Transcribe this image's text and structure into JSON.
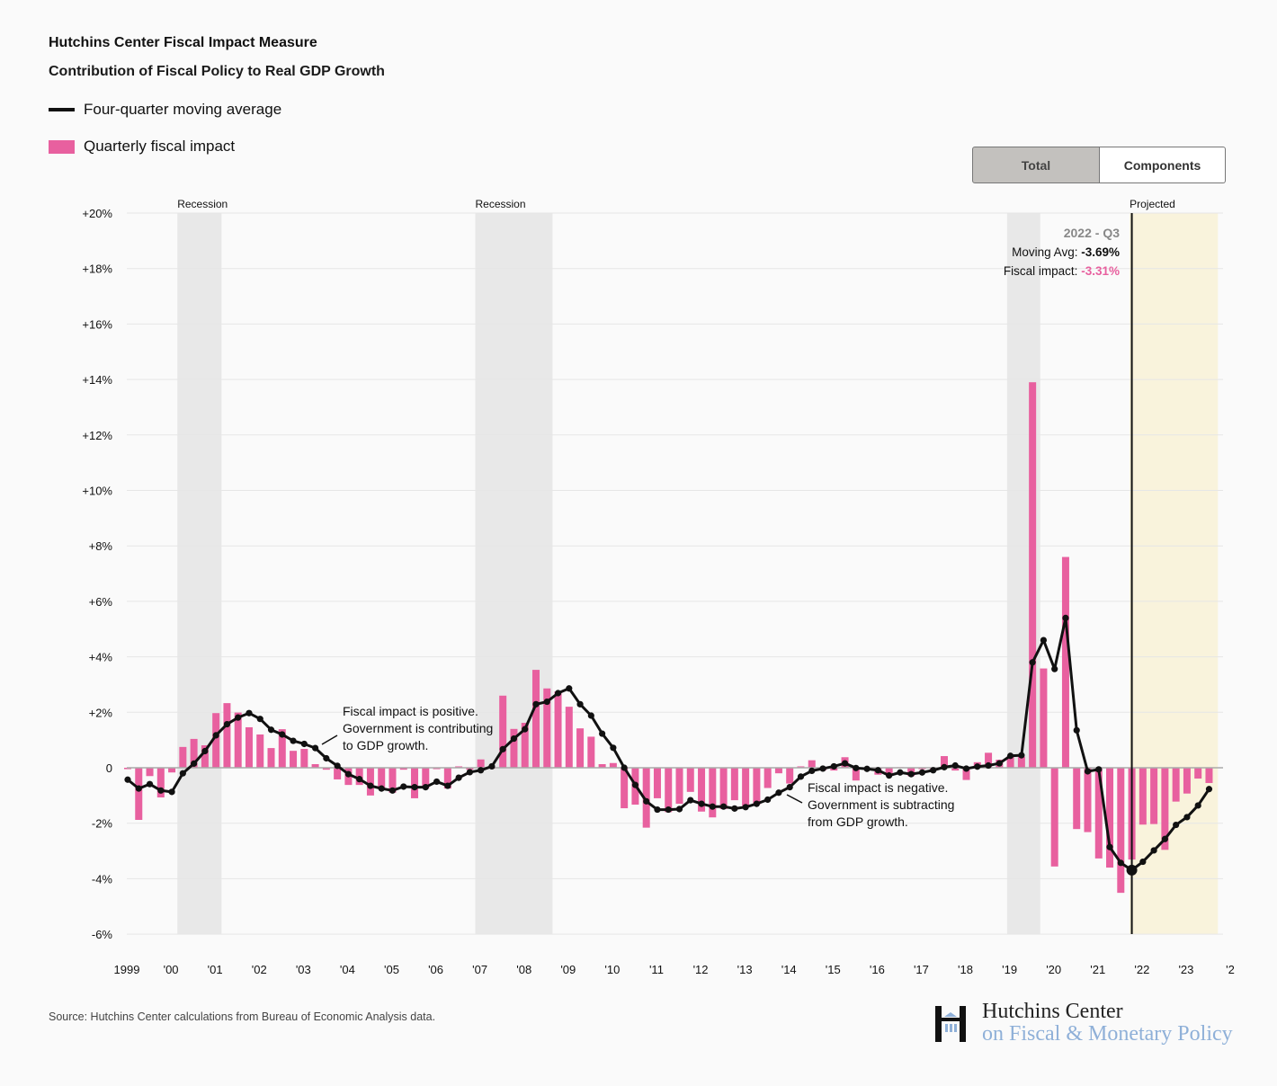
{
  "header": {
    "title": "Hutchins Center Fiscal Impact Measure",
    "subtitle": "Contribution of Fiscal Policy to Real GDP Growth"
  },
  "legend": {
    "line_label": "Four-quarter moving average",
    "bar_label": "Quarterly fiscal impact"
  },
  "toggle": {
    "total_label": "Total",
    "components_label": "Components",
    "selected": "Total"
  },
  "tooltip": {
    "period": "2022 - Q3",
    "moving_avg_label": "Moving Avg:",
    "moving_avg_value": "-3.69%",
    "fiscal_impact_label": "Fiscal impact:",
    "fiscal_impact_value": "-3.31%",
    "index": 91
  },
  "annotations": {
    "positive": [
      "Fiscal impact is positive.",
      "Government is contributing",
      "to GDP growth."
    ],
    "negative": [
      "Fiscal impact is negative.",
      "Government is subtracting",
      "from GDP growth."
    ]
  },
  "footer": {
    "source": "Source: Hutchins Center calculations from Bureau of Economic Analysis data.",
    "logo_line1": "Hutchins Center",
    "logo_line2": "on Fiscal & Monetary Policy"
  },
  "colors": {
    "bar": "#e8609f",
    "line": "#111111",
    "recession": "#e8e8e8",
    "projected": "#f9f3dc",
    "tooltip_pink": "#e8609f"
  },
  "chart_data": {
    "type": "bar+line",
    "title": "Contribution of Fiscal Policy to Real GDP Growth",
    "ylim": [
      -6,
      20
    ],
    "yticks": [
      20,
      18,
      16,
      14,
      12,
      10,
      8,
      6,
      4,
      2,
      0,
      -2,
      -4,
      -6
    ],
    "ytick_labels": [
      "+20%",
      "+18%",
      "+16%",
      "+14%",
      "+12%",
      "+10%",
      "+8%",
      "+6%",
      "+4%",
      "+2%",
      "0",
      "-2%",
      "-4%",
      "-6%"
    ],
    "xtick_labels": [
      "1999",
      "'00",
      "'01",
      "'02",
      "'03",
      "'04",
      "'05",
      "'06",
      "'07",
      "'08",
      "'09",
      "'10",
      "'11",
      "'12",
      "'13",
      "'14",
      "'15",
      "'16",
      "'17",
      "'18",
      "'19",
      "'20",
      "'21",
      "'22",
      "'23",
      "'2"
    ],
    "xtick_every_quarters": 4,
    "grid": true,
    "legend_position": "top-left",
    "shaded_regions": [
      {
        "label": "Recession",
        "start_q": 4.5,
        "end_q": 8.5,
        "type": "recession"
      },
      {
        "label": "Recession",
        "start_q": 31.5,
        "end_q": 38.5,
        "type": "recession"
      },
      {
        "label": "",
        "start_q": 79.7,
        "end_q": 82.7,
        "type": "recession"
      },
      {
        "label": "Projected",
        "start_q": 90.8,
        "end_q": 98.8,
        "type": "projected"
      }
    ],
    "series": [
      {
        "name": "Quarterly fiscal impact",
        "type": "bar",
        "values": [
          -0.05,
          -1.88,
          -0.3,
          -1.07,
          -0.17,
          0.75,
          1.04,
          0.81,
          1.97,
          2.33,
          1.99,
          1.46,
          1.2,
          0.71,
          1.39,
          0.61,
          0.68,
          0.13,
          -0.07,
          -0.42,
          -0.62,
          -0.62,
          -1.0,
          -0.74,
          -0.9,
          -0.07,
          -1.1,
          -0.75,
          -0.05,
          -0.75,
          0.05,
          -0.07,
          0.3,
          -0.03,
          2.6,
          1.4,
          1.62,
          3.53,
          2.86,
          2.75,
          2.2,
          1.42,
          1.12,
          0.13,
          0.17,
          -1.46,
          -1.33,
          -2.16,
          -1.1,
          -1.6,
          -1.3,
          -0.87,
          -1.58,
          -1.79,
          -1.49,
          -1.17,
          -1.38,
          -1.33,
          -0.73,
          -0.2,
          -0.57,
          0.05,
          0.27,
          -0.09,
          -0.1,
          0.38,
          -0.46,
          -0.08,
          -0.25,
          -0.2,
          0.02,
          -0.3,
          -0.05,
          -0.05,
          0.42,
          -0.1,
          -0.44,
          0.2,
          0.54,
          0.29,
          0.42,
          0.4,
          13.9,
          3.58,
          -3.56,
          7.6,
          -2.21,
          -2.32,
          -3.27,
          -3.6,
          -4.51,
          -3.31,
          -2.05,
          -2.03,
          -2.96,
          -1.22,
          -0.93,
          -0.39,
          -0.55
        ]
      },
      {
        "name": "Four-quarter moving average",
        "type": "line",
        "values": [
          -0.43,
          -0.75,
          -0.59,
          -0.82,
          -0.87,
          -0.2,
          0.15,
          0.6,
          1.17,
          1.57,
          1.81,
          1.97,
          1.76,
          1.37,
          1.2,
          0.97,
          0.86,
          0.71,
          0.34,
          0.07,
          -0.23,
          -0.41,
          -0.65,
          -0.75,
          -0.82,
          -0.68,
          -0.7,
          -0.7,
          -0.5,
          -0.65,
          -0.36,
          -0.16,
          -0.09,
          0.05,
          0.67,
          1.05,
          1.39,
          2.29,
          2.38,
          2.69,
          2.86,
          2.29,
          1.88,
          1.23,
          0.72,
          0,
          -0.62,
          -1.21,
          -1.51,
          -1.51,
          -1.49,
          -1.17,
          -1.3,
          -1.4,
          -1.4,
          -1.47,
          -1.42,
          -1.3,
          -1.15,
          -0.9,
          -0.7,
          -0.32,
          -0.11,
          -0.03,
          0.05,
          0.16,
          -0.01,
          -0.04,
          -0.09,
          -0.28,
          -0.17,
          -0.23,
          -0.17,
          -0.09,
          0.02,
          0.08,
          -0.03,
          0.04,
          0.08,
          0.16,
          0.43,
          0.45,
          3.8,
          4.6,
          3.56,
          5.4,
          1.35,
          -0.13,
          -0.06,
          -2.86,
          -3.43,
          -3.69,
          -3.39,
          -2.98,
          -2.57,
          -2.06,
          -1.78,
          -1.36,
          -0.77
        ]
      }
    ]
  }
}
